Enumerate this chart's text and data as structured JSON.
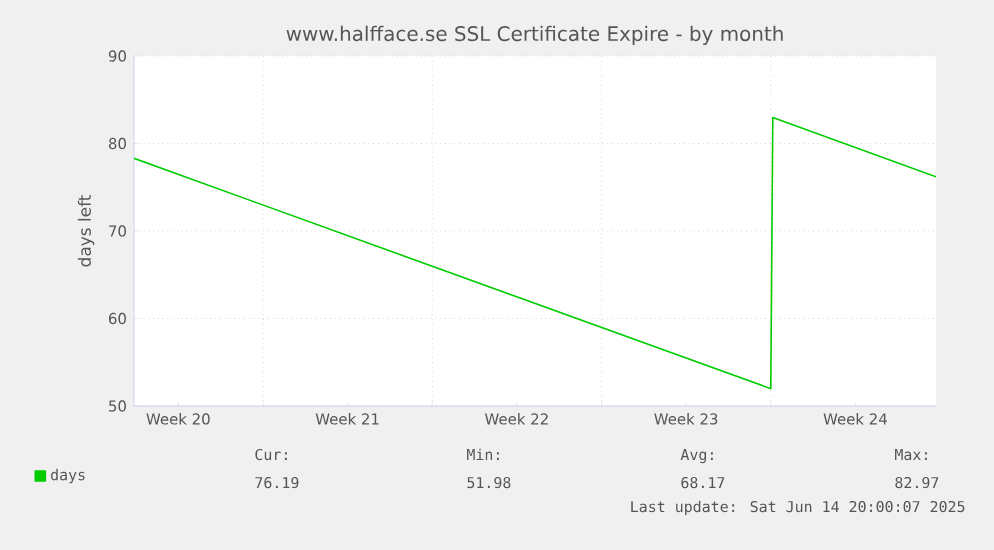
{
  "chart_data": {
    "type": "line",
    "title": "www.halfface.se SSL Certificate Expire - by month",
    "ylabel": "days left",
    "x": [
      "2025-05-12T16:00",
      "2025-06-08T00:00",
      "2025-06-08T02:00",
      "2025-06-14T20:00"
    ],
    "series": [
      {
        "name": "days",
        "color": "#00cc00",
        "values": [
          78.3,
          51.98,
          82.97,
          76.19
        ]
      }
    ],
    "xlim": [
      "2025-05-12T16:00",
      "2025-06-14T20:00"
    ],
    "xticks": [
      {
        "value": "2025-05-14T12:00",
        "label": "Week 20"
      },
      {
        "value": "2025-05-18",
        "label": null
      },
      {
        "value": "2025-05-21T12:00",
        "label": "Week 21"
      },
      {
        "value": "2025-05-25",
        "label": null
      },
      {
        "value": "2025-05-28T12:00",
        "label": "Week 22"
      },
      {
        "value": "2025-06-01",
        "label": null
      },
      {
        "value": "2025-06-04T12:00",
        "label": "Week 23"
      },
      {
        "value": "2025-06-08",
        "label": null
      },
      {
        "value": "2025-06-11T12:00",
        "label": "Week 24"
      }
    ],
    "ylim": [
      50,
      90
    ],
    "yticks": [
      50,
      60,
      70,
      80,
      90
    ],
    "grid": true,
    "legend": "bottom left",
    "annotations": [
      "Cur:",
      "76.19",
      "Min:",
      "51.98",
      "Avg:",
      "68.17",
      "Max:",
      "82.97",
      "Last update: Sat Jun 14 20:00:07 2025"
    ]
  }
}
